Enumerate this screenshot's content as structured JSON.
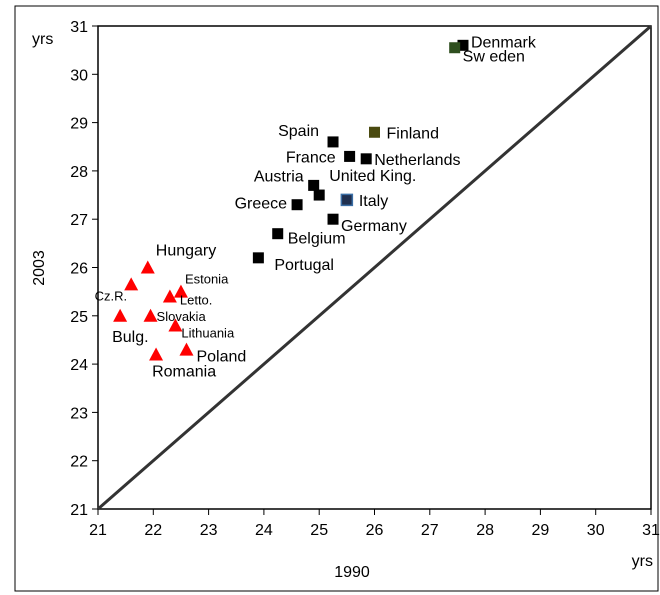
{
  "chart_data": {
    "type": "scatter",
    "xlabel": "1990",
    "ylabel": "2003",
    "x_unit": "yrs",
    "y_unit": "yrs",
    "xlim": [
      21,
      31
    ],
    "ylim": [
      21,
      31
    ],
    "xticks": [
      21,
      22,
      23,
      24,
      25,
      26,
      27,
      28,
      29,
      30,
      31
    ],
    "yticks": [
      21,
      22,
      23,
      24,
      25,
      26,
      27,
      28,
      29,
      30,
      31
    ],
    "grid": false,
    "reference_line": "y = x",
    "colors": {
      "western": "#000000",
      "eastern": "#ff0000",
      "finland": "#4a4a10",
      "sweden": "#2f4f1f",
      "italy": "#1f2f4f",
      "diagonal": "#333333"
    },
    "series": [
      {
        "marker": "square",
        "points": [
          {
            "label": "Denmark",
            "x": 27.6,
            "y": 30.6
          },
          {
            "label": "Sw eden",
            "x": 27.45,
            "y": 30.55
          },
          {
            "label": "Spain",
            "x": 25.25,
            "y": 28.6
          },
          {
            "label": "Finland",
            "x": 26.0,
            "y": 28.8
          },
          {
            "label": "France",
            "x": 25.55,
            "y": 28.3
          },
          {
            "label": "Netherlands",
            "x": 25.85,
            "y": 28.25
          },
          {
            "label": "Austria",
            "x": 24.9,
            "y": 27.7
          },
          {
            "label": "United King.",
            "x": 25.0,
            "y": 27.5
          },
          {
            "label": "Greece",
            "x": 24.6,
            "y": 27.3
          },
          {
            "label": "Italy",
            "x": 25.5,
            "y": 27.4
          },
          {
            "label": "Germany",
            "x": 25.25,
            "y": 27.0
          },
          {
            "label": "Belgium",
            "x": 24.25,
            "y": 26.7
          },
          {
            "label": "Portugal",
            "x": 23.9,
            "y": 26.2
          }
        ]
      },
      {
        "marker": "triangle",
        "points": [
          {
            "label": "Hungary",
            "x": 21.9,
            "y": 26.0
          },
          {
            "label": "Cz.R.",
            "x": 21.6,
            "y": 25.65
          },
          {
            "label": "Estonia",
            "x": 22.5,
            "y": 25.5
          },
          {
            "label": "Letto.",
            "x": 22.3,
            "y": 25.4
          },
          {
            "label": "Bulg.",
            "x": 21.4,
            "y": 25.0
          },
          {
            "label": "Slovakia",
            "x": 21.95,
            "y": 25.0
          },
          {
            "label": "Lithuania",
            "x": 22.4,
            "y": 24.8
          },
          {
            "label": "Poland",
            "x": 22.6,
            "y": 24.3
          },
          {
            "label": "Romania",
            "x": 22.05,
            "y": 24.2
          }
        ]
      }
    ]
  }
}
